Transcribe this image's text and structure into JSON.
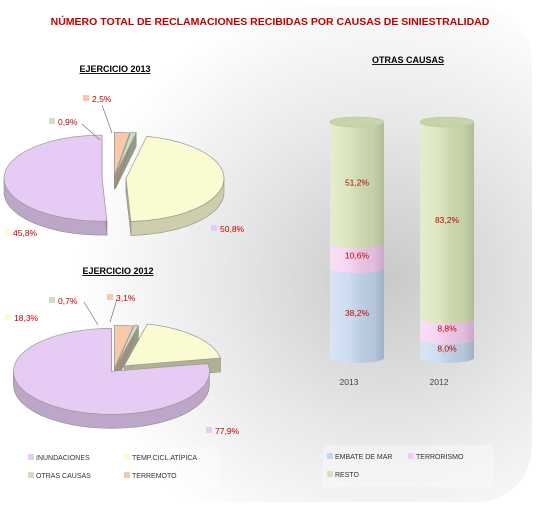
{
  "title": "NÚMERO TOTAL DE RECLAMACIONES RECIBIDAS POR CAUSAS DE SINIESTRALIDAD",
  "colors": {
    "title": "#c00000",
    "value_label": "#c00000",
    "inundaciones": "#e6ccf5",
    "temp_ciclatipica": "#fbfbd2",
    "otras_causas": "#cfe0c0",
    "terremoto": "#f6c9a8",
    "embate": "#c5d7ef",
    "terrorismo": "#f6cdf0",
    "resto": "#d6e3b6"
  },
  "chart_data": [
    {
      "type": "pie",
      "title": "EJERCICIO 2013",
      "slices": [
        {
          "name": "INUNDACIONES",
          "value": 50.8,
          "label": "50,8%"
        },
        {
          "name": "TEMP.CICL.ATÍPICA",
          "value": 45.8,
          "label": "45,8%"
        },
        {
          "name": "OTRAS CAUSAS",
          "value": 0.9,
          "label": "0,9%"
        },
        {
          "name": "TERREMOTO",
          "value": 2.5,
          "label": "2,5%"
        }
      ]
    },
    {
      "type": "pie",
      "title": "EJERCICIO 2012",
      "slices": [
        {
          "name": "INUNDACIONES",
          "value": 77.9,
          "label": "77,9%"
        },
        {
          "name": "TEMP.CICL.ATÍPICA",
          "value": 18.3,
          "label": "18,3%"
        },
        {
          "name": "OTRAS CAUSAS",
          "value": 0.7,
          "label": "0,7%"
        },
        {
          "name": "TERREMOTO",
          "value": 3.1,
          "label": "3,1%"
        }
      ]
    },
    {
      "type": "bar",
      "stacked": true,
      "title": "OTRAS CAUSAS",
      "categories": [
        "2013",
        "2012"
      ],
      "series": [
        {
          "name": "EMBATE DE MAR",
          "values": [
            38.2,
            8.0
          ],
          "labels": [
            "38,2%",
            "8,0%"
          ]
        },
        {
          "name": "TERRORISMO",
          "values": [
            10.6,
            8.8
          ],
          "labels": [
            "10,6%",
            "8,8%"
          ]
        },
        {
          "name": "RESTO",
          "values": [
            51.2,
            83.2
          ],
          "labels": [
            "51,2%",
            "83,2%"
          ]
        }
      ],
      "ylim": [
        0,
        100
      ]
    }
  ],
  "legends": {
    "pie": [
      "INUNDACIONES",
      "TEMP.CICL.ATÍPICA",
      "OTRAS CAUSAS",
      "TERREMOTO"
    ],
    "bar": [
      "EMBATE DE MAR",
      "TERRORISMO",
      "RESTO"
    ]
  }
}
